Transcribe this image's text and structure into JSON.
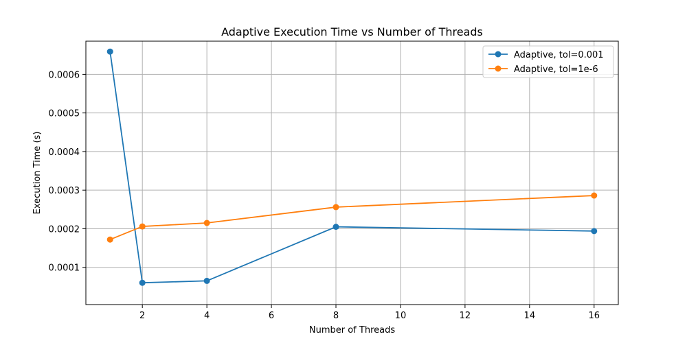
{
  "chart_data": {
    "type": "line",
    "title": "Adaptive Execution Time vs Number of Threads",
    "xlabel": "Number of Threads",
    "ylabel": "Execution Time (s)",
    "xlim": [
      0.25,
      16.75
    ],
    "ylim": [
      3.5e-06,
      0.000686
    ],
    "xticks": [
      2,
      4,
      6,
      8,
      10,
      12,
      14,
      16
    ],
    "xtick_labels": [
      "2",
      "4",
      "6",
      "8",
      "10",
      "12",
      "14",
      "16"
    ],
    "yticks": [
      0.0001,
      0.0002,
      0.0003,
      0.0004,
      0.0005,
      0.0006
    ],
    "ytick_labels": [
      "0.0001",
      "0.0002",
      "0.0003",
      "0.0004",
      "0.0005",
      "0.0006"
    ],
    "grid": true,
    "legend_position": "top-right",
    "x": [
      1,
      2,
      4,
      8,
      16
    ],
    "series": [
      {
        "name": "Adaptive, tol=0.001",
        "color": "#1f77b4",
        "values": [
          0.000659,
          6e-05,
          6.5e-05,
          0.000205,
          0.000194
        ]
      },
      {
        "name": "Adaptive, tol=1e-6",
        "color": "#ff7f0e",
        "values": [
          0.000172,
          0.000206,
          0.000215,
          0.000256,
          0.000286
        ]
      }
    ]
  }
}
